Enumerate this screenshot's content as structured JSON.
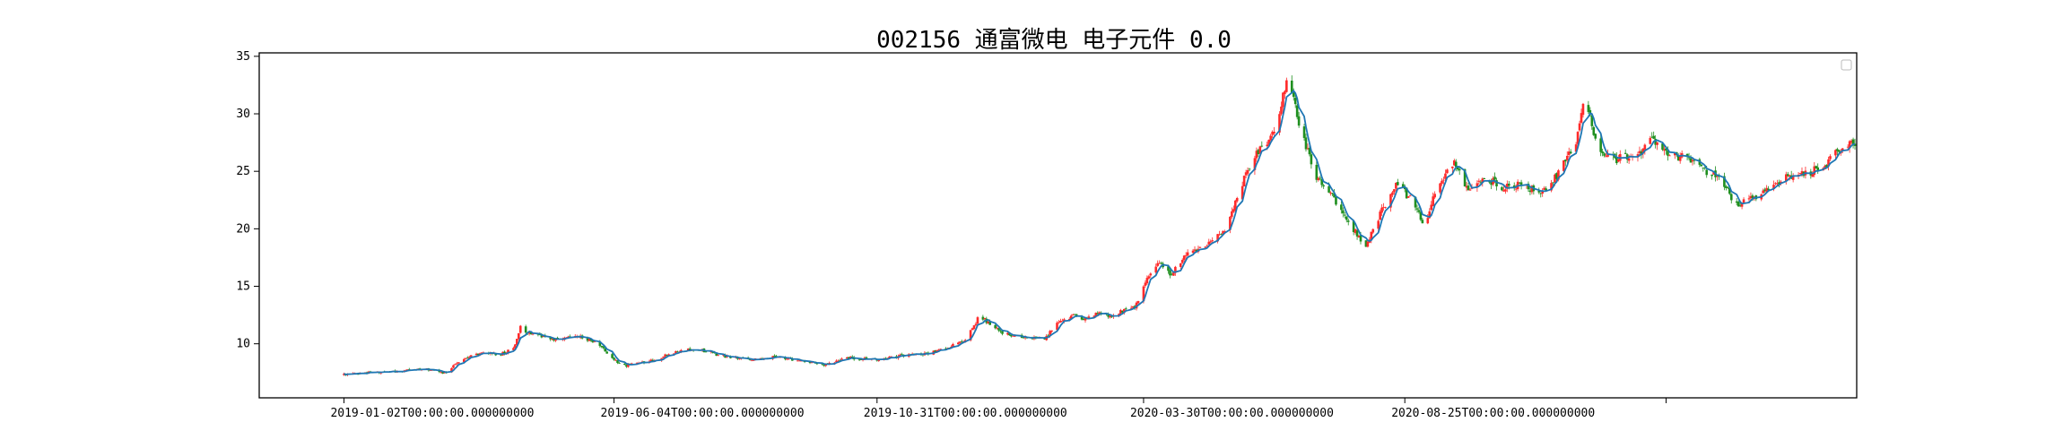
{
  "chart_data": {
    "type": "candlestick",
    "title": "002156 通富微电 电子元件 0.0",
    "xlabel": "",
    "ylabel": "",
    "ylim": [
      5.3,
      35.3
    ],
    "yticks": [
      10,
      15,
      20,
      25,
      30,
      35
    ],
    "x_range": [
      "2018-11-15",
      "2021-05-08"
    ],
    "xticks": [
      {
        "date": "2019-01-02",
        "label": "2019-01-02T00:00:00.000000000"
      },
      {
        "date": "2019-06-04",
        "label": "2019-06-04T00:00:00.000000000"
      },
      {
        "date": "2019-10-31",
        "label": "2019-10-31T00:00:00.000000000"
      },
      {
        "date": "2020-03-30",
        "label": "2020-03-30T00:00:00.000000000"
      },
      {
        "date": "2020-08-25",
        "label": "2020-08-25T00:00:00.000000000"
      },
      {
        "date": "2021-01-20",
        "label": ""
      }
    ],
    "grid": false,
    "legend": {
      "position": "upper-right",
      "entries": []
    },
    "colors": {
      "up": "#ff2a2a",
      "down": "#1f8f1f",
      "ma_line": "#1f77b4",
      "axes": "#000000"
    },
    "series": [
      {
        "kind": "close_trend",
        "points": [
          [
            "2019-01-02",
            7.3
          ],
          [
            "2019-01-15",
            7.5
          ],
          [
            "2019-02-01",
            7.6
          ],
          [
            "2019-02-20",
            7.8
          ],
          [
            "2019-03-01",
            7.4
          ],
          [
            "2019-03-08",
            8.5
          ],
          [
            "2019-03-20",
            9.2
          ],
          [
            "2019-04-01",
            9.1
          ],
          [
            "2019-04-08",
            9.6
          ],
          [
            "2019-04-12",
            11.4
          ],
          [
            "2019-04-18",
            10.8
          ],
          [
            "2019-04-30",
            10.4
          ],
          [
            "2019-05-15",
            10.6
          ],
          [
            "2019-05-25",
            10.2
          ],
          [
            "2019-06-04",
            8.6
          ],
          [
            "2019-06-10",
            8.1
          ],
          [
            "2019-06-25",
            8.5
          ],
          [
            "2019-07-05",
            9.1
          ],
          [
            "2019-07-20",
            9.6
          ],
          [
            "2019-08-05",
            8.9
          ],
          [
            "2019-08-20",
            8.6
          ],
          [
            "2019-09-05",
            8.9
          ],
          [
            "2019-09-20",
            8.4
          ],
          [
            "2019-10-01",
            8.2
          ],
          [
            "2019-10-15",
            8.8
          ],
          [
            "2019-10-31",
            8.6
          ],
          [
            "2019-11-15",
            9.0
          ],
          [
            "2019-11-30",
            9.2
          ],
          [
            "2019-12-10",
            9.7
          ],
          [
            "2019-12-20",
            10.3
          ],
          [
            "2019-12-28",
            12.4
          ],
          [
            "2020-01-10",
            11.0
          ],
          [
            "2020-01-20",
            10.6
          ],
          [
            "2020-02-03",
            10.4
          ],
          [
            "2020-02-10",
            11.8
          ],
          [
            "2020-02-20",
            12.5
          ],
          [
            "2020-02-25",
            12.0
          ],
          [
            "2020-03-05",
            12.8
          ],
          [
            "2020-03-10",
            12.4
          ],
          [
            "2020-03-18",
            12.9
          ],
          [
            "2020-03-25",
            13.2
          ],
          [
            "2020-04-02",
            16.0
          ],
          [
            "2020-04-08",
            17.1
          ],
          [
            "2020-04-15",
            16.0
          ],
          [
            "2020-04-22",
            17.6
          ],
          [
            "2020-05-05",
            18.6
          ],
          [
            "2020-05-15",
            19.8
          ],
          [
            "2020-05-22",
            22.8
          ],
          [
            "2020-06-01",
            26.5
          ],
          [
            "2020-06-10",
            27.8
          ],
          [
            "2020-06-20",
            33.0
          ],
          [
            "2020-06-28",
            28.0
          ],
          [
            "2020-07-06",
            24.4
          ],
          [
            "2020-07-15",
            22.8
          ],
          [
            "2020-07-25",
            20.3
          ],
          [
            "2020-08-03",
            18.6
          ],
          [
            "2020-08-12",
            21.6
          ],
          [
            "2020-08-20",
            24.0
          ],
          [
            "2020-08-28",
            22.6
          ],
          [
            "2020-09-05",
            20.3
          ],
          [
            "2020-09-12",
            23.6
          ],
          [
            "2020-09-22",
            25.6
          ],
          [
            "2020-09-30",
            23.5
          ],
          [
            "2020-10-10",
            24.4
          ],
          [
            "2020-10-20",
            23.6
          ],
          [
            "2020-10-30",
            23.8
          ],
          [
            "2020-11-10",
            23.1
          ],
          [
            "2020-11-20",
            24.8
          ],
          [
            "2020-11-30",
            27.6
          ],
          [
            "2020-12-05",
            31.9
          ],
          [
            "2020-12-12",
            27.0
          ],
          [
            "2020-12-22",
            26.0
          ],
          [
            "2021-01-05",
            26.6
          ],
          [
            "2021-01-12",
            27.9
          ],
          [
            "2021-01-20",
            26.5
          ],
          [
            "2021-01-30",
            26.2
          ],
          [
            "2021-02-10",
            25.2
          ],
          [
            "2021-02-20",
            24.4
          ],
          [
            "2021-03-01",
            22.0
          ],
          [
            "2021-03-10",
            22.6
          ],
          [
            "2021-03-20",
            23.5
          ],
          [
            "2021-03-30",
            24.5
          ],
          [
            "2021-04-10",
            24.8
          ],
          [
            "2021-04-20",
            25.5
          ],
          [
            "2021-04-28",
            27.0
          ],
          [
            "2021-05-08",
            27.6
          ]
        ]
      }
    ]
  }
}
